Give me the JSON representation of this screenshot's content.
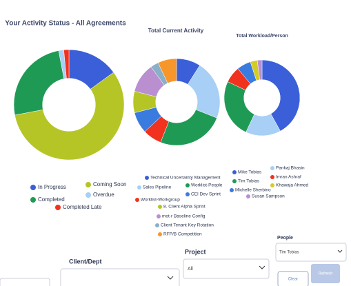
{
  "chart_data": [
    {
      "type": "pie",
      "donut": true,
      "title": "Your Activity Status - All Agreements",
      "categories": [
        "In Progress",
        "Coming Soon",
        "Completed",
        "Overdue",
        "Completed Late"
      ],
      "values": [
        15,
        57,
        25,
        1.5,
        1.5
      ],
      "colors": [
        "#3a5fd8",
        "#b5c526",
        "#1f9a55",
        "#a8cff5",
        "#f0321e"
      ]
    },
    {
      "type": "pie",
      "donut": true,
      "title": "Total Current Activity",
      "categories": [
        "Technical Uncertainty Management",
        "Sales Pipeline",
        "Worklist-People",
        "Worklist-Workgroup",
        "CEI Dev Sprint",
        "8. Client Alpha Sprint",
        "mot-r Baseline Config",
        "Client Tenant Key Rotation",
        "RFP/B Competition"
      ],
      "values": [
        9,
        22,
        25,
        7,
        8,
        8,
        11,
        3,
        7
      ],
      "colors": [
        "#3a5fd8",
        "#a8cff5",
        "#1f9a55",
        "#f0321e",
        "#3a7be0",
        "#b5c526",
        "#b98fd0",
        "#8ab0c8",
        "#f7962a"
      ]
    },
    {
      "type": "pie",
      "donut": true,
      "title": "Total Workload/Person",
      "categories": [
        "Mike Tobias",
        "Pankaj Bhasin",
        "Tim Tobias",
        "Imran Ashraf",
        "Michelle Sherbino",
        "Khawaja Ahmed",
        "Susan Sampson"
      ],
      "values": [
        42,
        15,
        25,
        7,
        6,
        3,
        2
      ],
      "colors": [
        "#3a5fd8",
        "#a8cff5",
        "#1f9a55",
        "#f0321e",
        "#3a7be0",
        "#d4cc22",
        "#b98fd0"
      ]
    }
  ],
  "filters": {
    "client_label": "Client/Dept",
    "project_label": "Project",
    "project_value": "All",
    "people_label": "People",
    "people_value": "Tim Tobias",
    "clear": "Clear",
    "refresh": "Refresh"
  }
}
